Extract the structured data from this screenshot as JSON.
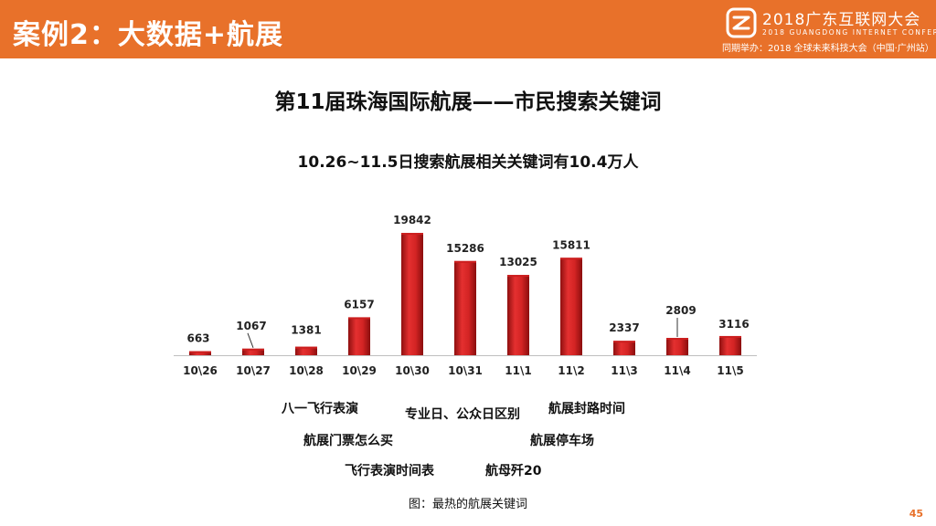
{
  "header": {
    "title": "案例2：大数据+航展",
    "conference": "2018广东互联网大会",
    "conference_en": "2018 GUANGDONG INTERNET CONFERENCE",
    "conference_sub": "同期举办：2018 全球未来科技大会（中国·广州站）",
    "color": "#e8712a"
  },
  "main_title": "第11届珠海国际航展——市民搜索关键词",
  "subtitle": "10.26~11.5日搜索航展相关关键词有10.4万人",
  "chart_data": {
    "type": "bar",
    "categories": [
      "10\\26",
      "10\\27",
      "10\\28",
      "10\\29",
      "10\\30",
      "10\\31",
      "11\\1",
      "11\\2",
      "11\\3",
      "11\\4",
      "11\\5"
    ],
    "values": [
      663,
      1067,
      1381,
      6157,
      19842,
      15286,
      13025,
      15811,
      2337,
      2809,
      3116
    ],
    "data_labels": [
      "663",
      "1067",
      "1381",
      "6157",
      "19842",
      "15286",
      "13025",
      "15811",
      "2337",
      "2809",
      "3116"
    ],
    "bar_color": "#cc1f1f",
    "title": "",
    "xlabel": "",
    "ylabel": "",
    "ylim": [
      0,
      20000
    ],
    "grid": false
  },
  "keywords": [
    "八一飞行表演",
    "航展门票怎么买",
    "飞行表演时间表",
    "专业日、公众日区别",
    "航母歼20",
    "航展封路时间",
    "航展停车场"
  ],
  "caption": "图：最热的航展关键词",
  "page_number": "45"
}
